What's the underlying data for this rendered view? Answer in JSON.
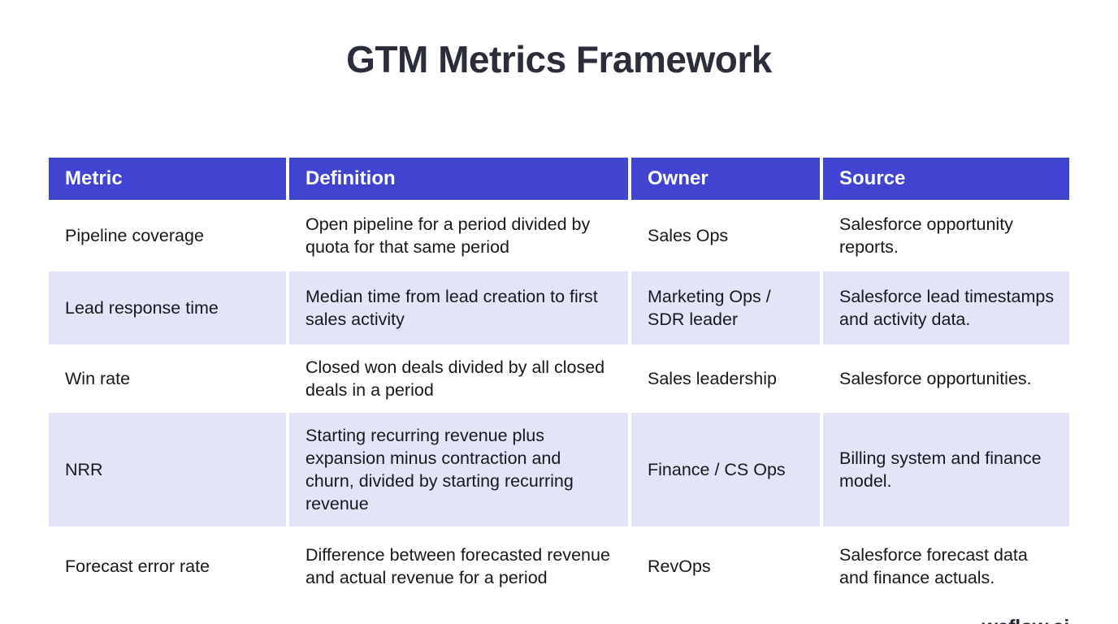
{
  "page": {
    "title": "GTM Metrics Framework",
    "brand": "weflow.ai"
  },
  "colors": {
    "header_bg": "#4143d1",
    "header_text": "#ffffff",
    "row_alt_bg": "#e4e4f8",
    "body_text": "#17181c",
    "title_text": "#2b2e3a",
    "brand_text": "#232634"
  },
  "table": {
    "columns": {
      "metric": "Metric",
      "definition": "Definition",
      "owner": "Owner",
      "source": "Source"
    },
    "rows": [
      {
        "metric": "Pipeline coverage",
        "definition": "Open pipeline for a period divided by quota for that same period",
        "owner": "Sales Ops",
        "source": "Salesforce opportunity reports."
      },
      {
        "metric": "Lead response time",
        "definition": "Median time from lead creation to first sales activity",
        "owner": "Marketing Ops / SDR leader",
        "source": "Salesforce lead timestamps and activity data."
      },
      {
        "metric": "Win rate",
        "definition": "Closed won deals divided by all closed deals in a period",
        "owner": "Sales leadership",
        "source": "Salesforce opportunities."
      },
      {
        "metric": "NRR",
        "definition": "Starting recurring revenue plus expansion minus contraction and churn, divided by starting recurring revenue",
        "owner": "Finance / CS Ops",
        "source": "Billing system and finance model."
      },
      {
        "metric": "Forecast error rate",
        "definition": "Difference between forecasted revenue and actual revenue for a period",
        "owner": "RevOps",
        "source": "Salesforce forecast data and finance actuals."
      }
    ]
  }
}
